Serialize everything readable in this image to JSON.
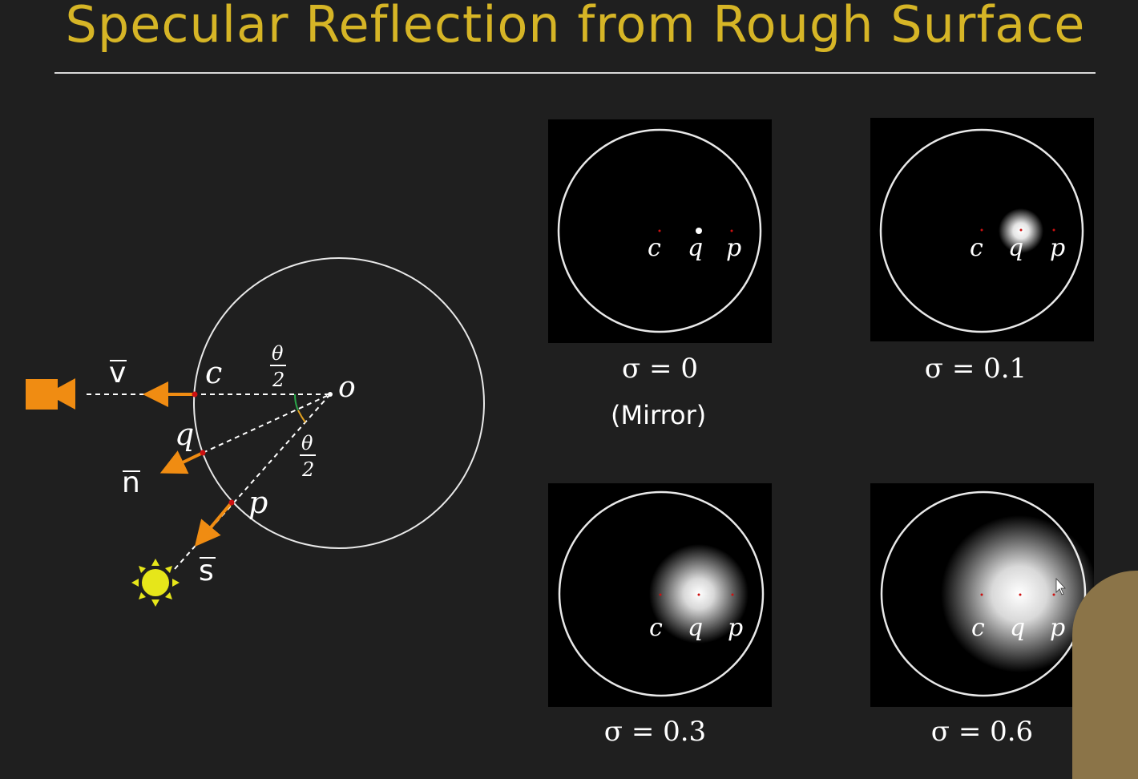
{
  "title": "Specular Reflection from Rough Surface",
  "diagram": {
    "labels": {
      "v": "v",
      "n": "n",
      "s": "s",
      "c": "c",
      "q": "q",
      "p": "p",
      "o": "o",
      "theta": "θ",
      "two": "2"
    },
    "colors": {
      "camera": "#f08c12",
      "sun": "#e6e61a",
      "vectors": "#f08c12",
      "points": "#cc1111",
      "circle": "#e8e8e8"
    }
  },
  "panels": [
    {
      "sigma_label": "σ = 0",
      "sub_label": "(Mirror)",
      "glow": 0,
      "point_labels": [
        "c",
        "q",
        "p"
      ]
    },
    {
      "sigma_label": "σ = 0.1",
      "sub_label": "",
      "glow": 0.1,
      "point_labels": [
        "c",
        "q",
        "p"
      ]
    },
    {
      "sigma_label": "σ = 0.3",
      "sub_label": "",
      "glow": 0.3,
      "point_labels": [
        "c",
        "q",
        "p"
      ]
    },
    {
      "sigma_label": "σ = 0.6",
      "sub_label": "",
      "glow": 0.6,
      "point_labels": [
        "c",
        "q",
        "p"
      ]
    }
  ]
}
